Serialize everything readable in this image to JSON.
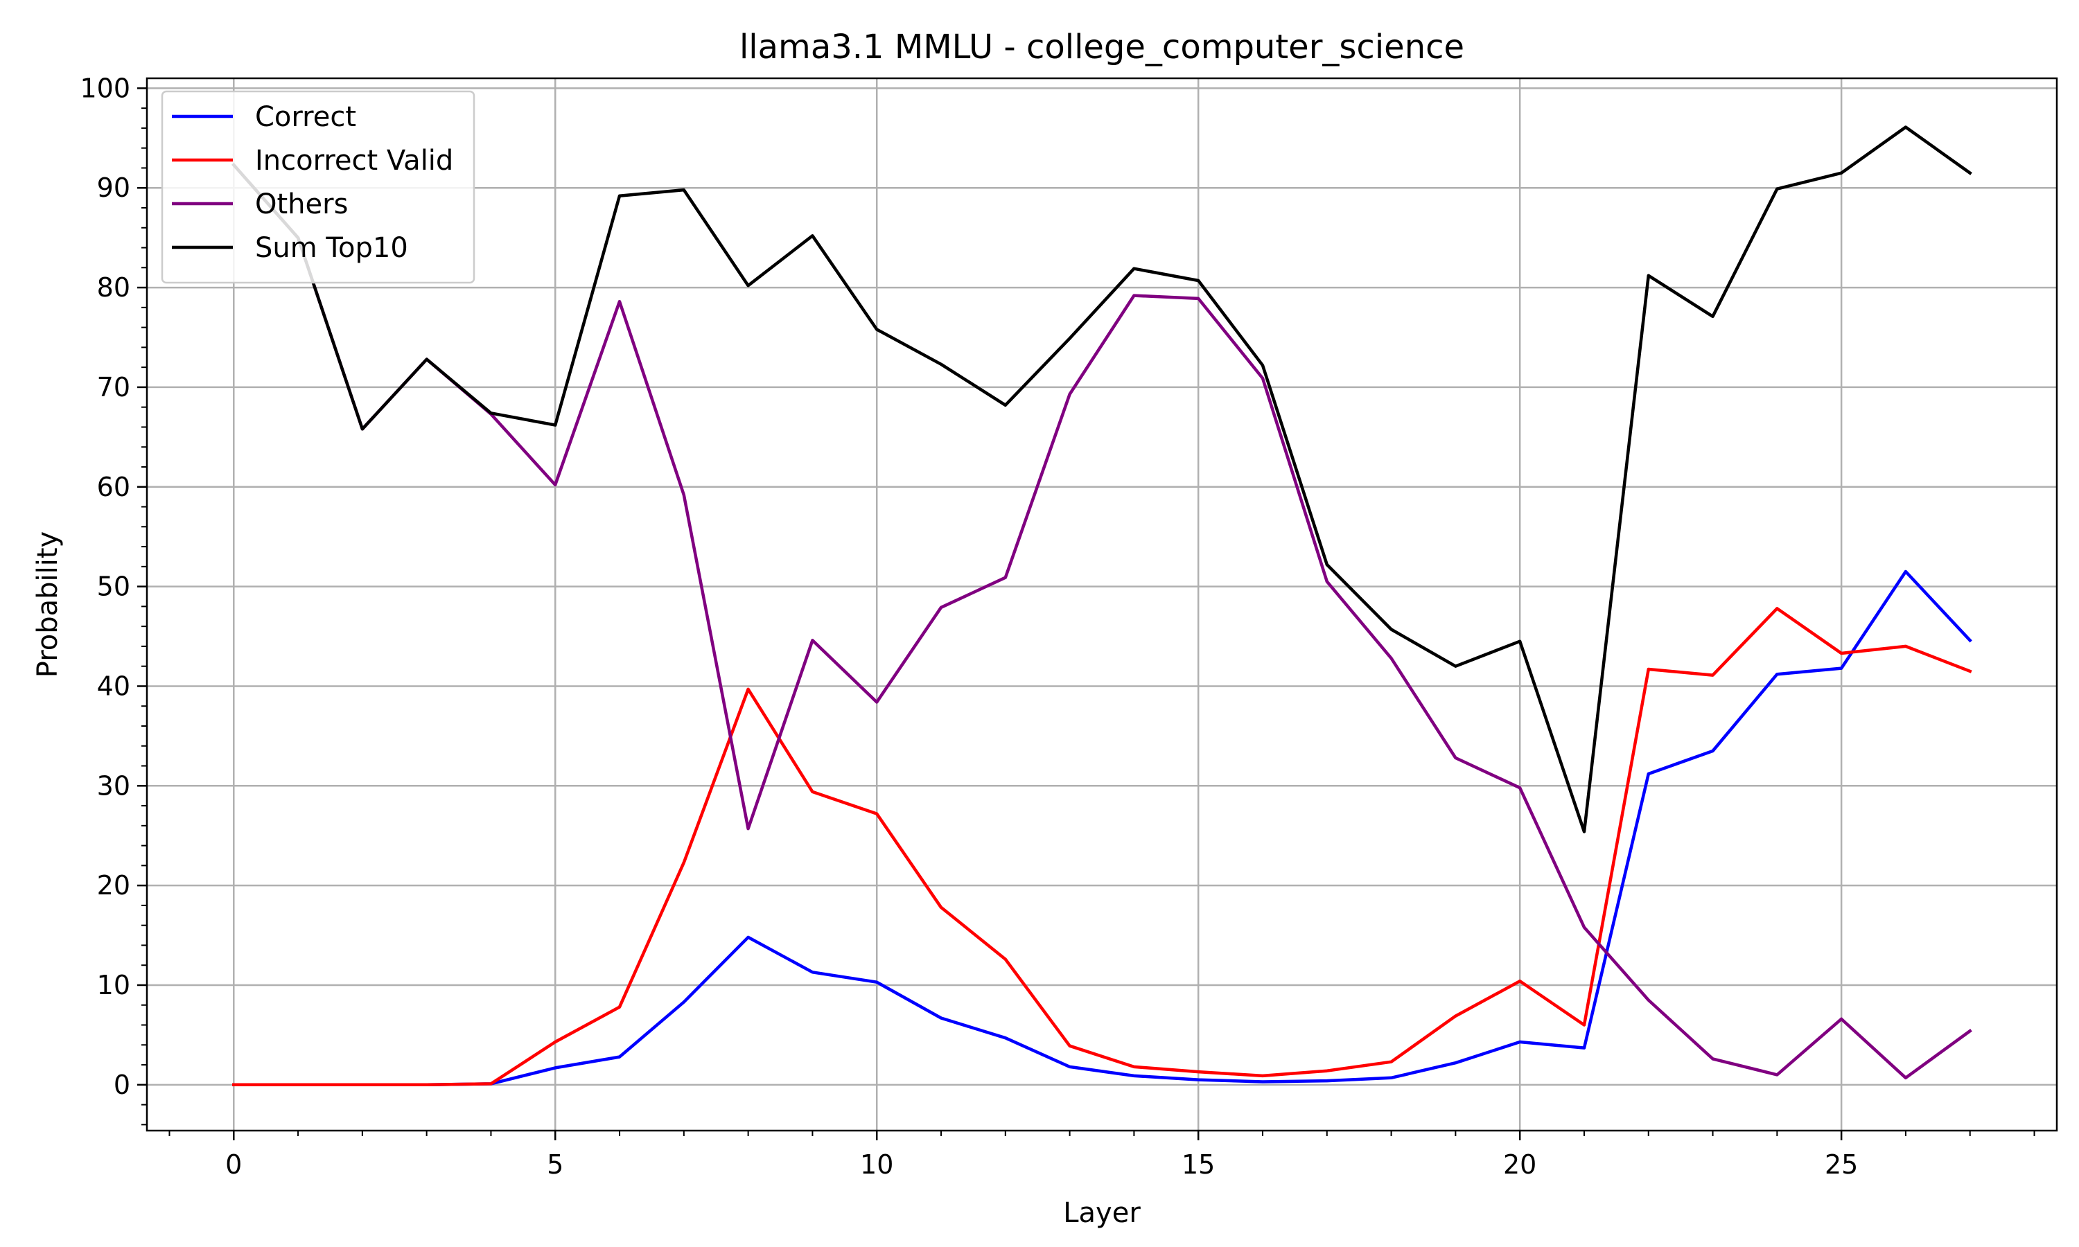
{
  "chart_data": {
    "type": "line",
    "title": "llama3.1 MMLU - college_computer_science",
    "xlabel": "Layer",
    "ylabel": "Probability",
    "xlim": [
      -1.35,
      28.35
    ],
    "ylim": [
      -4.6,
      101
    ],
    "xticks": [
      0,
      5,
      10,
      15,
      20,
      25
    ],
    "yticks": [
      0,
      10,
      20,
      30,
      40,
      50,
      60,
      70,
      80,
      90,
      100
    ],
    "grid": true,
    "legend_position": "top-left",
    "x": [
      0,
      1,
      2,
      3,
      4,
      5,
      6,
      7,
      8,
      9,
      10,
      11,
      12,
      13,
      14,
      15,
      16,
      17,
      18,
      19,
      20,
      21,
      22,
      23,
      24,
      25,
      26,
      27
    ],
    "series": [
      {
        "name": "Correct",
        "color": "#0000ff",
        "values": [
          0,
          0,
          0,
          0,
          0.1,
          1.7,
          2.8,
          8.3,
          14.8,
          11.3,
          10.3,
          6.7,
          4.7,
          1.8,
          0.9,
          0.5,
          0.3,
          0.4,
          0.7,
          2.2,
          4.3,
          3.7,
          31.2,
          33.5,
          41.2,
          41.8,
          51.5,
          44.6
        ]
      },
      {
        "name": "Incorrect Valid",
        "color": "#ff0000",
        "values": [
          0,
          0,
          0,
          0,
          0.1,
          4.3,
          7.8,
          22.3,
          39.7,
          29.4,
          27.2,
          17.8,
          12.6,
          3.9,
          1.8,
          1.3,
          0.9,
          1.4,
          2.3,
          6.9,
          10.4,
          6.0,
          41.7,
          41.1,
          47.8,
          43.3,
          44.0,
          41.5
        ]
      },
      {
        "name": "Others",
        "color": "#800080",
        "values": [
          92.3,
          85.0,
          65.8,
          72.8,
          67.3,
          60.2,
          78.6,
          59.2,
          25.7,
          44.6,
          38.4,
          47.9,
          50.9,
          69.3,
          79.2,
          78.9,
          70.9,
          50.5,
          42.8,
          32.8,
          29.8,
          15.8,
          8.5,
          2.6,
          1.0,
          6.6,
          0.7,
          5.4
        ]
      },
      {
        "name": "Sum Top10",
        "color": "#000000",
        "values": [
          92.3,
          85.0,
          65.8,
          72.8,
          67.4,
          66.2,
          89.2,
          89.8,
          80.2,
          85.2,
          75.8,
          72.3,
          68.2,
          74.9,
          81.9,
          80.7,
          72.2,
          52.2,
          45.7,
          42.0,
          44.5,
          25.4,
          81.2,
          77.1,
          89.9,
          91.5,
          96.1,
          91.5
        ]
      }
    ]
  }
}
